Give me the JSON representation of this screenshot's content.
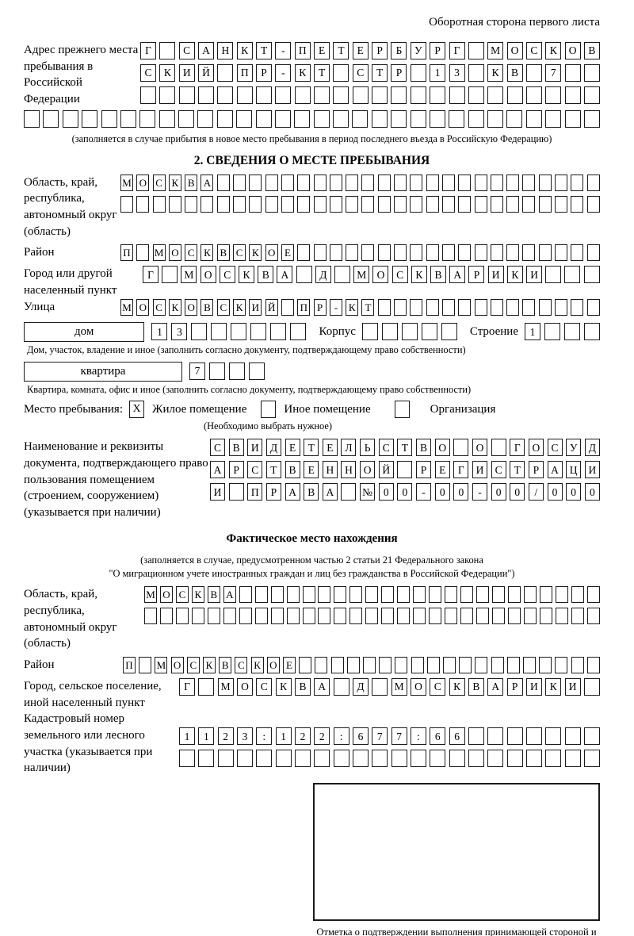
{
  "page": {
    "header_note": "Оборотная сторона первого листа"
  },
  "prev_address": {
    "label": "Адрес прежнего места пребывания в Российской Федерации",
    "row1": {
      "n": 24,
      "v": "Г САНКТ-ПЕТЕРБУРГ МОСКОВ"
    },
    "row2": {
      "n": 24,
      "v": "СКИЙ ПР-КТ СТР 13 КВ 7"
    },
    "row3": {
      "n": 24,
      "v": ""
    },
    "row4": {
      "n": 30,
      "v": ""
    },
    "caption": "(заполняется в случае прибытия в новое место пребывания в период последнего въезда в Российскую Федерацию)"
  },
  "section2": {
    "title": "2. СВЕДЕНИЯ О МЕСТЕ ПРЕБЫВАНИЯ",
    "oblast": {
      "label": "Область, край, республика, автономный округ (область)",
      "row1": {
        "n": 30,
        "v": "МОСКВА"
      },
      "row2": {
        "n": 30,
        "v": ""
      }
    },
    "raion": {
      "label": "Район",
      "row": {
        "n": 30,
        "v": "П МОСКВСКОЕ"
      }
    },
    "gorod": {
      "label": "Город или другой населенный пункт",
      "row": {
        "n": 24,
        "v": "Г МОСКВА Д МОСКВАРИКИ"
      }
    },
    "ulitsa": {
      "label": "Улица",
      "row": {
        "n": 30,
        "v": "МОСКОВСКИЙ ПР-КТ"
      }
    },
    "dom": {
      "label": "дом",
      "cells": {
        "n": 8,
        "v": "13"
      },
      "korpus_label": "Корпус",
      "korpus_cells": {
        "n": 5,
        "v": ""
      },
      "stroenie_label": "Строение",
      "stroenie_cells": {
        "n": 4,
        "v": "1"
      },
      "caption": "Дом, участок, владение и иное (заполнить согласно документу, подтверждающему право собственности)"
    },
    "kvartira": {
      "label": "квартира",
      "cells": {
        "n": 4,
        "v": "7"
      },
      "caption": "Квартира, комната, офис и иное (заполнить согласно документу, подтверждающему право собственности)"
    },
    "mesto": {
      "label": "Место пребывания:",
      "opt1": "Жилое помещение",
      "opt1_checked": "X",
      "opt2": "Иное помещение",
      "opt2_checked": "",
      "opt3": "Организация",
      "opt3_checked": "",
      "note": "(Необходимо выбрать нужное)"
    },
    "doc": {
      "label": "Наименование и реквизиты документа, подтверждающего право пользования помещением (строением, сооружением) (указывается при наличии)",
      "row1": {
        "n": 21,
        "v": "СВИДЕТЕЛЬСТВО О ГОСУД"
      },
      "row2": {
        "n": 21,
        "v": "АРСТВЕННОЙ РЕГИСТРАЦИ"
      },
      "row3": {
        "n": 21,
        "v": "И ПРАВА №00-00-00/000"
      }
    }
  },
  "fact": {
    "title": "Фактическое место нахождения",
    "caption1": "(заполняется в случае, предусмотренном частью 2 статьи 21 Федерального закона",
    "caption2": "\"О миграционном учете иностранных граждан и лиц без гражданства в Российской Федерации\")",
    "oblast": {
      "label": "Область, край, республика, автономный округ (область)",
      "row1": {
        "n": 29,
        "v": "МОСКВА"
      },
      "row2": {
        "n": 29,
        "v": ""
      }
    },
    "raion": {
      "label": "Район",
      "row": {
        "n": 30,
        "v": "П МОСКВСКОЕ"
      }
    },
    "gorod": {
      "label": "Город, сельское поселение, иной населенный пункт",
      "row": {
        "n": 22,
        "v": "Г МОСКВА Д МОСКВАРИКИ"
      }
    },
    "kadastr": {
      "label": "Кадастровый номер земельного или лесного участка (указывается при наличии)",
      "row1": {
        "n": 22,
        "v": "1123:122:677:66"
      },
      "row2": {
        "n": 22,
        "v": ""
      }
    },
    "stamp_caption": "Отметка о подтверждении выполнения принимающей стороной и иностранным гражданином или лицом без гражданства действий, необходимых для его постановки на учет по месту пребывания"
  }
}
